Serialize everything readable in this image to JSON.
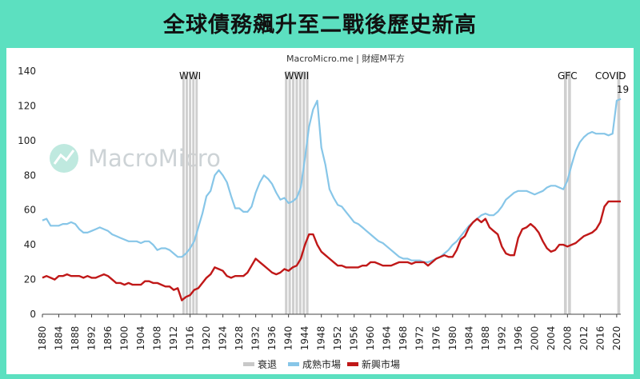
{
  "title": "全球債務飆升至二戰後歷史新高",
  "source": "MacroMicro.me | 財經M平方",
  "watermark": "MacroMicro",
  "chart_data": {
    "type": "line",
    "xlim": [
      1880,
      2021
    ],
    "ylim": [
      0,
      140
    ],
    "yticks": [
      0,
      20,
      40,
      60,
      80,
      100,
      120,
      140
    ],
    "xticks": [
      1880,
      1884,
      1888,
      1892,
      1896,
      1900,
      1904,
      1908,
      1912,
      1916,
      1920,
      1924,
      1928,
      1932,
      1936,
      1940,
      1944,
      1948,
      1952,
      1956,
      1960,
      1964,
      1968,
      1972,
      1976,
      1980,
      1984,
      1988,
      1992,
      1996,
      2000,
      2004,
      2008,
      2012,
      2016,
      2020
    ],
    "recession_bands": [
      {
        "label": "WWI",
        "start": 1914,
        "end": 1918
      },
      {
        "label": "WWII",
        "start": 1939,
        "end": 1945
      },
      {
        "label": "GFC",
        "start": 2007,
        "end": 2009
      },
      {
        "label": "COVID-19",
        "start": 2020,
        "end": 2021
      }
    ],
    "band_labels": {
      "wwi": "WWI",
      "wwii": "WWII",
      "gfc": "GFC",
      "covid_a": "COVID",
      "covid_b": "19"
    },
    "series": [
      {
        "name": "成熟市場",
        "color": "#87c6e8",
        "x": [
          1880,
          1881,
          1882,
          1883,
          1884,
          1885,
          1886,
          1887,
          1888,
          1889,
          1890,
          1891,
          1892,
          1893,
          1894,
          1895,
          1896,
          1897,
          1898,
          1899,
          1900,
          1901,
          1902,
          1903,
          1904,
          1905,
          1906,
          1907,
          1908,
          1909,
          1910,
          1911,
          1912,
          1913,
          1914,
          1915,
          1916,
          1917,
          1918,
          1919,
          1920,
          1921,
          1922,
          1923,
          1924,
          1925,
          1926,
          1927,
          1928,
          1929,
          1930,
          1931,
          1932,
          1933,
          1934,
          1935,
          1936,
          1937,
          1938,
          1939,
          1940,
          1941,
          1942,
          1943,
          1944,
          1945,
          1946,
          1947,
          1948,
          1949,
          1950,
          1951,
          1952,
          1953,
          1954,
          1955,
          1956,
          1957,
          1958,
          1959,
          1960,
          1961,
          1962,
          1963,
          1964,
          1965,
          1966,
          1967,
          1968,
          1969,
          1970,
          1971,
          1972,
          1973,
          1974,
          1975,
          1976,
          1977,
          1978,
          1979,
          1980,
          1981,
          1982,
          1983,
          1984,
          1985,
          1986,
          1987,
          1988,
          1989,
          1990,
          1991,
          1992,
          1993,
          1994,
          1995,
          1996,
          1997,
          1998,
          1999,
          2000,
          2001,
          2002,
          2003,
          2004,
          2005,
          2006,
          2007,
          2008,
          2009,
          2010,
          2011,
          2012,
          2013,
          2014,
          2015,
          2016,
          2017,
          2018,
          2019,
          2020,
          2021
        ],
        "values": [
          54,
          55,
          51,
          51,
          51,
          52,
          52,
          53,
          52,
          49,
          47,
          47,
          48,
          49,
          50,
          49,
          48,
          46,
          45,
          44,
          43,
          42,
          42,
          42,
          41,
          42,
          42,
          40,
          37,
          38,
          38,
          37,
          35,
          33,
          33,
          35,
          38,
          42,
          50,
          58,
          68,
          71,
          80,
          83,
          80,
          76,
          68,
          61,
          61,
          59,
          59,
          62,
          70,
          76,
          80,
          78,
          75,
          70,
          66,
          67,
          64,
          65,
          67,
          73,
          90,
          108,
          118,
          123,
          96,
          86,
          72,
          67,
          63,
          62,
          59,
          56,
          53,
          52,
          50,
          48,
          46,
          44,
          42,
          41,
          39,
          37,
          35,
          33,
          32,
          32,
          31,
          31,
          31,
          30,
          30,
          31,
          32,
          33,
          35,
          37,
          40,
          42,
          45,
          48,
          51,
          53,
          55,
          57,
          58,
          57,
          57,
          59,
          62,
          66,
          68,
          70,
          71,
          71,
          71,
          70,
          69,
          70,
          71,
          73,
          74,
          74,
          73,
          72,
          77,
          86,
          94,
          99,
          102,
          104,
          105,
          104,
          104,
          104,
          103,
          104,
          123,
          124
        ]
      },
      {
        "name": "新興市場",
        "color": "#c01818",
        "x": [
          1880,
          1881,
          1882,
          1883,
          1884,
          1885,
          1886,
          1887,
          1888,
          1889,
          1890,
          1891,
          1892,
          1893,
          1894,
          1895,
          1896,
          1897,
          1898,
          1899,
          1900,
          1901,
          1902,
          1903,
          1904,
          1905,
          1906,
          1907,
          1908,
          1909,
          1910,
          1911,
          1912,
          1913,
          1914,
          1915,
          1916,
          1917,
          1918,
          1919,
          1920,
          1921,
          1922,
          1923,
          1924,
          1925,
          1926,
          1927,
          1928,
          1929,
          1930,
          1931,
          1932,
          1933,
          1934,
          1935,
          1936,
          1937,
          1938,
          1939,
          1940,
          1941,
          1942,
          1943,
          1944,
          1945,
          1946,
          1947,
          1948,
          1949,
          1950,
          1951,
          1952,
          1953,
          1954,
          1955,
          1956,
          1957,
          1958,
          1959,
          1960,
          1961,
          1962,
          1963,
          1964,
          1965,
          1966,
          1967,
          1968,
          1969,
          1970,
          1971,
          1972,
          1973,
          1974,
          1975,
          1976,
          1977,
          1978,
          1979,
          1980,
          1981,
          1982,
          1983,
          1984,
          1985,
          1986,
          1987,
          1988,
          1989,
          1990,
          1991,
          1992,
          1993,
          1994,
          1995,
          1996,
          1997,
          1998,
          1999,
          2000,
          2001,
          2002,
          2003,
          2004,
          2005,
          2006,
          2007,
          2008,
          2009,
          2010,
          2011,
          2012,
          2013,
          2014,
          2015,
          2016,
          2017,
          2018,
          2019,
          2020,
          2021
        ],
        "values": [
          21,
          22,
          21,
          20,
          22,
          22,
          23,
          22,
          22,
          22,
          21,
          22,
          21,
          21,
          22,
          23,
          22,
          20,
          18,
          18,
          17,
          18,
          17,
          17,
          17,
          19,
          19,
          18,
          18,
          17,
          16,
          16,
          14,
          15,
          8,
          10,
          11,
          14,
          15,
          18,
          21,
          23,
          27,
          26,
          25,
          22,
          21,
          22,
          22,
          22,
          24,
          28,
          32,
          30,
          28,
          26,
          24,
          23,
          24,
          26,
          25,
          27,
          28,
          32,
          40,
          46,
          46,
          40,
          36,
          34,
          32,
          30,
          28,
          28,
          27,
          27,
          27,
          27,
          28,
          28,
          30,
          30,
          29,
          28,
          28,
          28,
          29,
          30,
          30,
          30,
          29,
          30,
          30,
          30,
          28,
          30,
          32,
          33,
          34,
          33,
          33,
          37,
          43,
          45,
          50,
          53,
          55,
          53,
          55,
          50,
          48,
          46,
          39,
          35,
          34,
          34,
          44,
          49,
          50,
          52,
          50,
          47,
          42,
          38,
          36,
          37,
          40,
          40,
          39,
          40,
          41,
          43,
          45,
          46,
          47,
          49,
          53,
          62,
          65,
          65,
          65,
          65
        ],
        "values_note": "last entries flattened for span 2018-2021"
      }
    ],
    "legend": {
      "recession": "衰退",
      "developed": "成熟市場",
      "emerging": "新興市場"
    }
  }
}
